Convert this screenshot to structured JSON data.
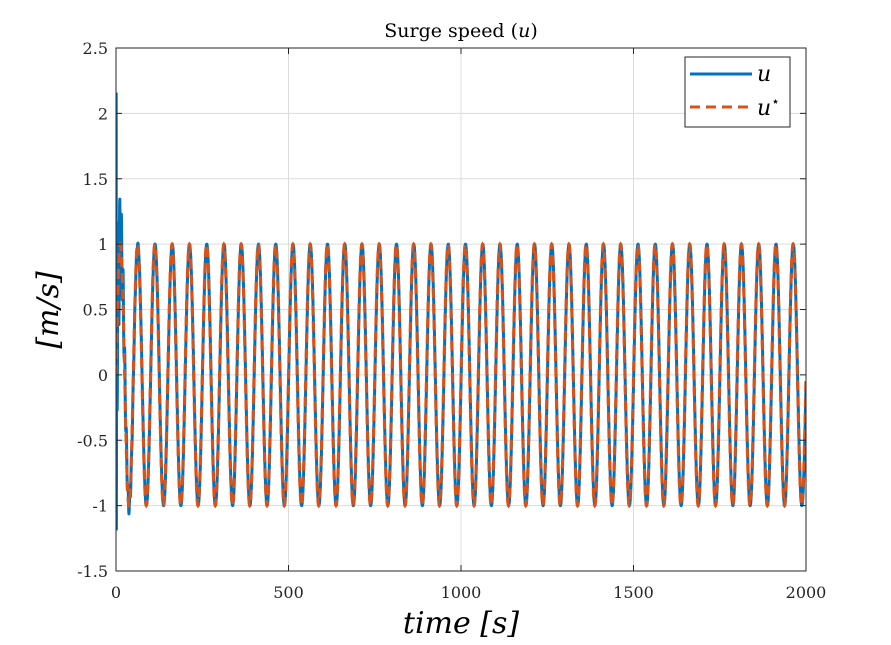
{
  "chart_data": {
    "type": "line",
    "title": "Surge speed (u)",
    "xlabel": "time [s]",
    "ylabel": "[m/s]",
    "xlim": [
      0,
      2000
    ],
    "ylim": [
      -1.5,
      2.5
    ],
    "xticks": [
      0,
      500,
      1000,
      1500,
      2000
    ],
    "xtick_labels": [
      "0",
      "500",
      "1000",
      "1500",
      "2000"
    ],
    "yticks": [
      -1.5,
      -1,
      -0.5,
      0,
      0.5,
      1,
      1.5,
      2,
      2.5
    ],
    "ytick_labels": [
      "-1.5",
      "-1",
      "-0.5",
      "0",
      "0.5",
      "1",
      "1.5",
      "2",
      "2.5"
    ],
    "grid": true,
    "legend_position": "top-right",
    "series": [
      {
        "name": "u",
        "color": "#0072BD",
        "style": "solid",
        "description_values": {
          "amplitude": 1,
          "period": 50,
          "initial_spike_max": 2.15,
          "initial_spike_min": -1.18
        }
      },
      {
        "name": "u*",
        "color": "#D95319",
        "style": "dashed",
        "description_values": {
          "amplitude": 1,
          "period": 50
        }
      }
    ]
  }
}
